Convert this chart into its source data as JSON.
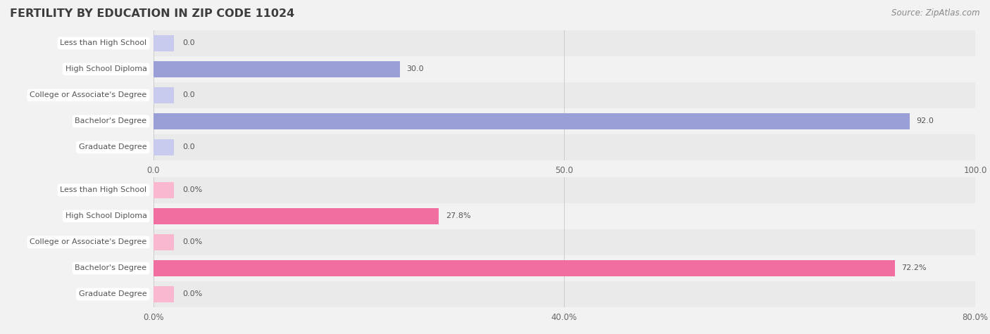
{
  "title": "FERTILITY BY EDUCATION IN ZIP CODE 11024",
  "source_text": "Source: ZipAtlas.com",
  "top_chart": {
    "categories": [
      "Less than High School",
      "High School Diploma",
      "College or Associate's Degree",
      "Bachelor's Degree",
      "Graduate Degree"
    ],
    "values": [
      0.0,
      30.0,
      0.0,
      92.0,
      0.0
    ],
    "bar_color": "#9B9FD8",
    "light_bar_color": "#C8CAEE",
    "xlim_max": 100,
    "xticks": [
      0.0,
      50.0,
      100.0
    ],
    "xtick_labels": [
      "0.0",
      "50.0",
      "100.0"
    ],
    "is_percent": false
  },
  "bottom_chart": {
    "categories": [
      "Less than High School",
      "High School Diploma",
      "College or Associate's Degree",
      "Bachelor's Degree",
      "Graduate Degree"
    ],
    "values": [
      0.0,
      27.8,
      0.0,
      72.2,
      0.0
    ],
    "bar_color": "#F06FA0",
    "light_bar_color": "#F9B8D0",
    "xlim_max": 80,
    "xticks": [
      0.0,
      40.0,
      80.0
    ],
    "xtick_labels": [
      "0.0%",
      "40.0%",
      "80.0%"
    ],
    "is_percent": true
  },
  "bar_height": 0.62,
  "row_bg_even": "#EAEAEA",
  "row_bg_odd": "#F2F2F2",
  "bg_color": "#F2F2F2",
  "title_color": "#3D3D3D",
  "source_color": "#888888",
  "label_color": "#555555",
  "value_color": "#555555",
  "grid_color": "#CCCCCC",
  "title_fontsize": 11.5,
  "source_fontsize": 8.5,
  "tick_fontsize": 8.5,
  "label_fontsize": 8.0,
  "value_fontsize": 8.0
}
